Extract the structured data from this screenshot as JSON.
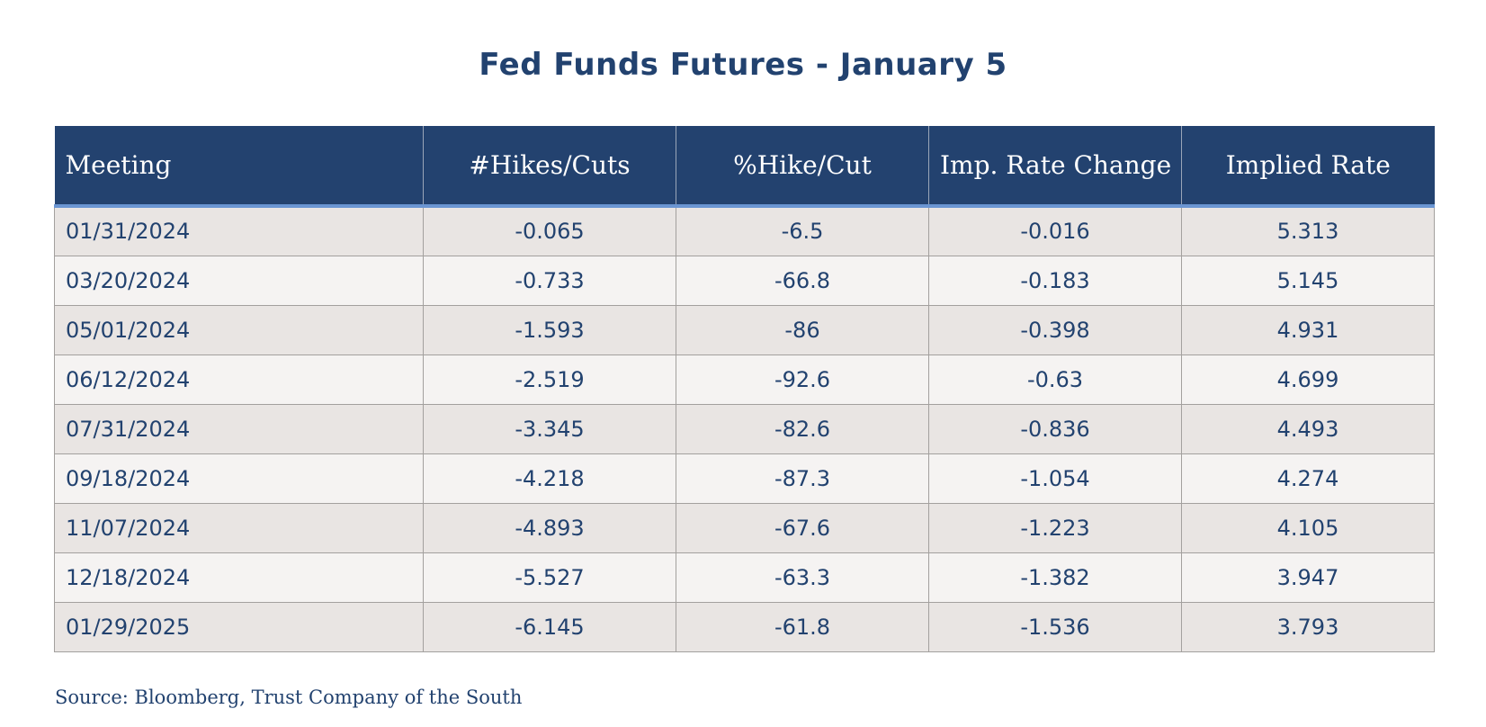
{
  "chart_data": {
    "type": "table",
    "title": "Fed Funds Futures - January 5",
    "columns": [
      "Meeting",
      "#Hikes/Cuts",
      "%Hike/Cut",
      "Imp. Rate Change",
      "Implied Rate"
    ],
    "rows": [
      [
        "01/31/2024",
        "-0.065",
        "-6.5",
        "-0.016",
        "5.313"
      ],
      [
        "03/20/2024",
        "-0.733",
        "-66.8",
        "-0.183",
        "5.145"
      ],
      [
        "05/01/2024",
        "-1.593",
        "-86",
        "-0.398",
        "4.931"
      ],
      [
        "06/12/2024",
        "-2.519",
        "-92.6",
        "-0.63",
        "4.699"
      ],
      [
        "07/31/2024",
        "-3.345",
        "-82.6",
        "-0.836",
        "4.493"
      ],
      [
        "09/18/2024",
        "-4.218",
        "-87.3",
        "-1.054",
        "4.274"
      ],
      [
        "11/07/2024",
        "-4.893",
        "-67.6",
        "-1.223",
        "4.105"
      ],
      [
        "12/18/2024",
        "-5.527",
        "-63.3",
        "-1.382",
        "3.947"
      ],
      [
        "01/29/2025",
        "-6.145",
        "-61.8",
        "-1.536",
        "3.793"
      ]
    ],
    "source": "Source: Bloomberg, Trust Company of the South",
    "colors": {
      "header_background": "#23426f",
      "header_rule": "#6a95d2",
      "text": "#22426f",
      "row_band_dark": "#e9e5e3",
      "row_band_light": "#f5f3f2"
    }
  }
}
